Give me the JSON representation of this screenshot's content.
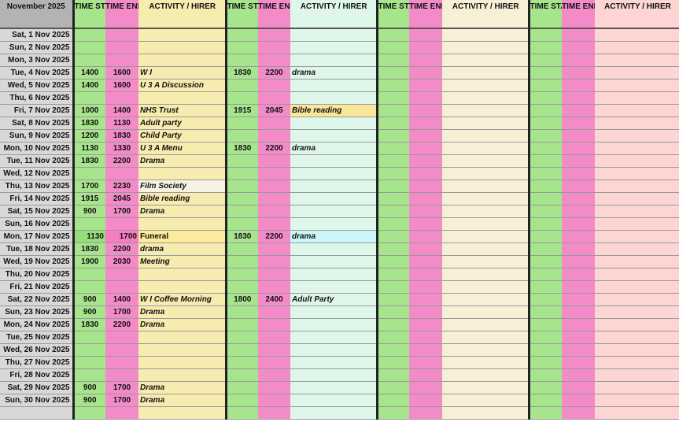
{
  "header": {
    "month": "November 2025",
    "time_start": "TIME START",
    "time_end": "TIME END",
    "activity": "ACTIVITY / HIRER"
  },
  "colors": {
    "start": "#a7e58c",
    "end": "#f38bc9",
    "activity1": "#f7ecb0",
    "activity2": "#dff7ea",
    "activity3": "#f8f0d6",
    "activity4": "#fdd5d3",
    "date": "#d8d8d8"
  },
  "rows": [
    {
      "date": "Sat, 1 Nov 2025"
    },
    {
      "date": "Sun, 2 Nov 2025"
    },
    {
      "date": "Mon, 3 Nov 2025"
    },
    {
      "date": "Tue, 4 Nov 2025",
      "b1": {
        "start": "1400",
        "end": "1600",
        "activity": "W I"
      },
      "b2": {
        "start": "1830",
        "end": "2200",
        "activity": "drama"
      }
    },
    {
      "date": "Wed, 5 Nov 2025",
      "b1": {
        "start": "1400",
        "end": "1600",
        "activity": "U 3 A Discussion"
      }
    },
    {
      "date": "Thu, 6 Nov 2025"
    },
    {
      "date": "Fri, 7 Nov 2025",
      "b1": {
        "start": "1000",
        "end": "1400",
        "activity": "NHS Trust"
      },
      "b2": {
        "start": "1915",
        "end": "2045",
        "activity": "Bible reading",
        "highlight": "yellow"
      }
    },
    {
      "date": "Sat, 8 Nov 2025",
      "b1": {
        "start": "1830",
        "end": "1130",
        "activity": "Adult party"
      }
    },
    {
      "date": "Sun, 9 Nov 2025",
      "b1": {
        "start": "1200",
        "end": "1830",
        "activity": "Child Party"
      }
    },
    {
      "date": "Mon, 10 Nov 2025",
      "b1": {
        "start": "1130",
        "end": "1330",
        "activity": "U 3 A Menu"
      },
      "b2": {
        "start": "1830",
        "end": "2200",
        "activity": "drama"
      }
    },
    {
      "date": "Tue, 11 Nov 2025",
      "b1": {
        "start": "1830",
        "end": "2200",
        "activity": "Drama"
      }
    },
    {
      "date": "Wed, 12 Nov 2025"
    },
    {
      "date": "Thu, 13 Nov 2025",
      "b1": {
        "start": "1700",
        "end": "2230",
        "activity": "Film Society",
        "highlight": "cream"
      }
    },
    {
      "date": "Fri, 14 Nov 2025",
      "b1": {
        "start": "1915",
        "end": "2045",
        "activity": "Bible reading"
      }
    },
    {
      "date": "Sat, 15 Nov 2025",
      "b1": {
        "start": "900",
        "end": "1700",
        "activity": "Drama"
      }
    },
    {
      "date": "Sun, 16 Nov 2025"
    },
    {
      "date": "Mon, 17 Nov 2025",
      "b1": {
        "start": "1130",
        "end": "1700",
        "activity": "Funeral",
        "highlight": "bright"
      },
      "b2": {
        "start": "1830",
        "end": "2200",
        "activity": "drama",
        "highlight": "cyan"
      }
    },
    {
      "date": "Tue, 18 Nov 2025",
      "b1": {
        "start": "1830",
        "end": "2200",
        "activity": "drama"
      }
    },
    {
      "date": "Wed, 19 Nov 2025",
      "b1": {
        "start": "1900",
        "end": "2030",
        "activity": "Meeting"
      }
    },
    {
      "date": "Thu, 20 Nov 2025"
    },
    {
      "date": "Fri, 21 Nov 2025"
    },
    {
      "date": "Sat, 22 Nov 2025",
      "b1": {
        "start": "900",
        "end": "1400",
        "activity": "W I Coffee Morning"
      },
      "b2": {
        "start": "1800",
        "end": "2400",
        "activity": "Adult Party"
      }
    },
    {
      "date": "Sun, 23 Nov 2025",
      "b1": {
        "start": "900",
        "end": "1700",
        "activity": "Drama"
      }
    },
    {
      "date": "Mon, 24 Nov 2025",
      "b1": {
        "start": "1830",
        "end": "2200",
        "activity": "Drama"
      }
    },
    {
      "date": "Tue, 25 Nov 2025"
    },
    {
      "date": "Wed, 26 Nov 2025"
    },
    {
      "date": "Thu, 27 Nov 2025"
    },
    {
      "date": "Fri, 28 Nov 2025"
    },
    {
      "date": "Sat, 29 Nov 2025",
      "b1": {
        "start": "900",
        "end": "1700",
        "activity": "Drama"
      }
    },
    {
      "date": "Sun, 30 Nov 2025",
      "b1": {
        "start": "900",
        "end": "1700",
        "activity": "Drama"
      }
    }
  ]
}
